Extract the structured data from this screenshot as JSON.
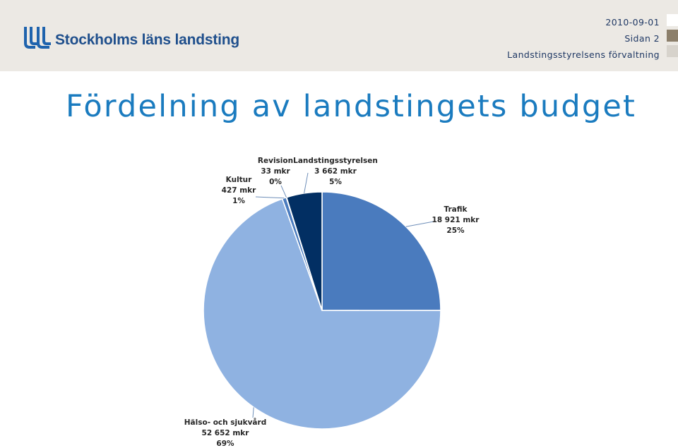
{
  "header": {
    "logo_text": "Stockholms läns landsting",
    "date": "2010-09-01",
    "page": "Sidan 2",
    "department": "Landstingsstyrelsens förvaltning",
    "square_colors": [
      "#ffffff",
      "#8c7f6b",
      "#d7d3cc"
    ]
  },
  "title": "Fördelning av landstingets budget",
  "chart_data": {
    "type": "pie",
    "title": "",
    "start_angle": "12 o'clock, clockwise",
    "slices": [
      {
        "name": "Trafik",
        "value_text": "18 921 mkr",
        "percent_text": "25%",
        "value": 18921,
        "color": "#4a7bbe"
      },
      {
        "name": "Hälso- och sjukvård",
        "value_text": "52 652 mkr",
        "percent_text": "69%",
        "value": 52652,
        "color": "#8fb2e1"
      },
      {
        "name": "Kultur",
        "value_text": "427 mkr",
        "percent_text": "1%",
        "value": 427,
        "color": "#4a7bbe"
      },
      {
        "name": "Revision",
        "value_text": "33 mkr",
        "percent_text": "0%",
        "value": 33,
        "color": "#8fb2e1"
      },
      {
        "name": "Landstingsstyrelsen",
        "value_text": "3 662 mkr",
        "percent_text": "5%",
        "value": 3662,
        "color": "#022f63"
      }
    ]
  }
}
